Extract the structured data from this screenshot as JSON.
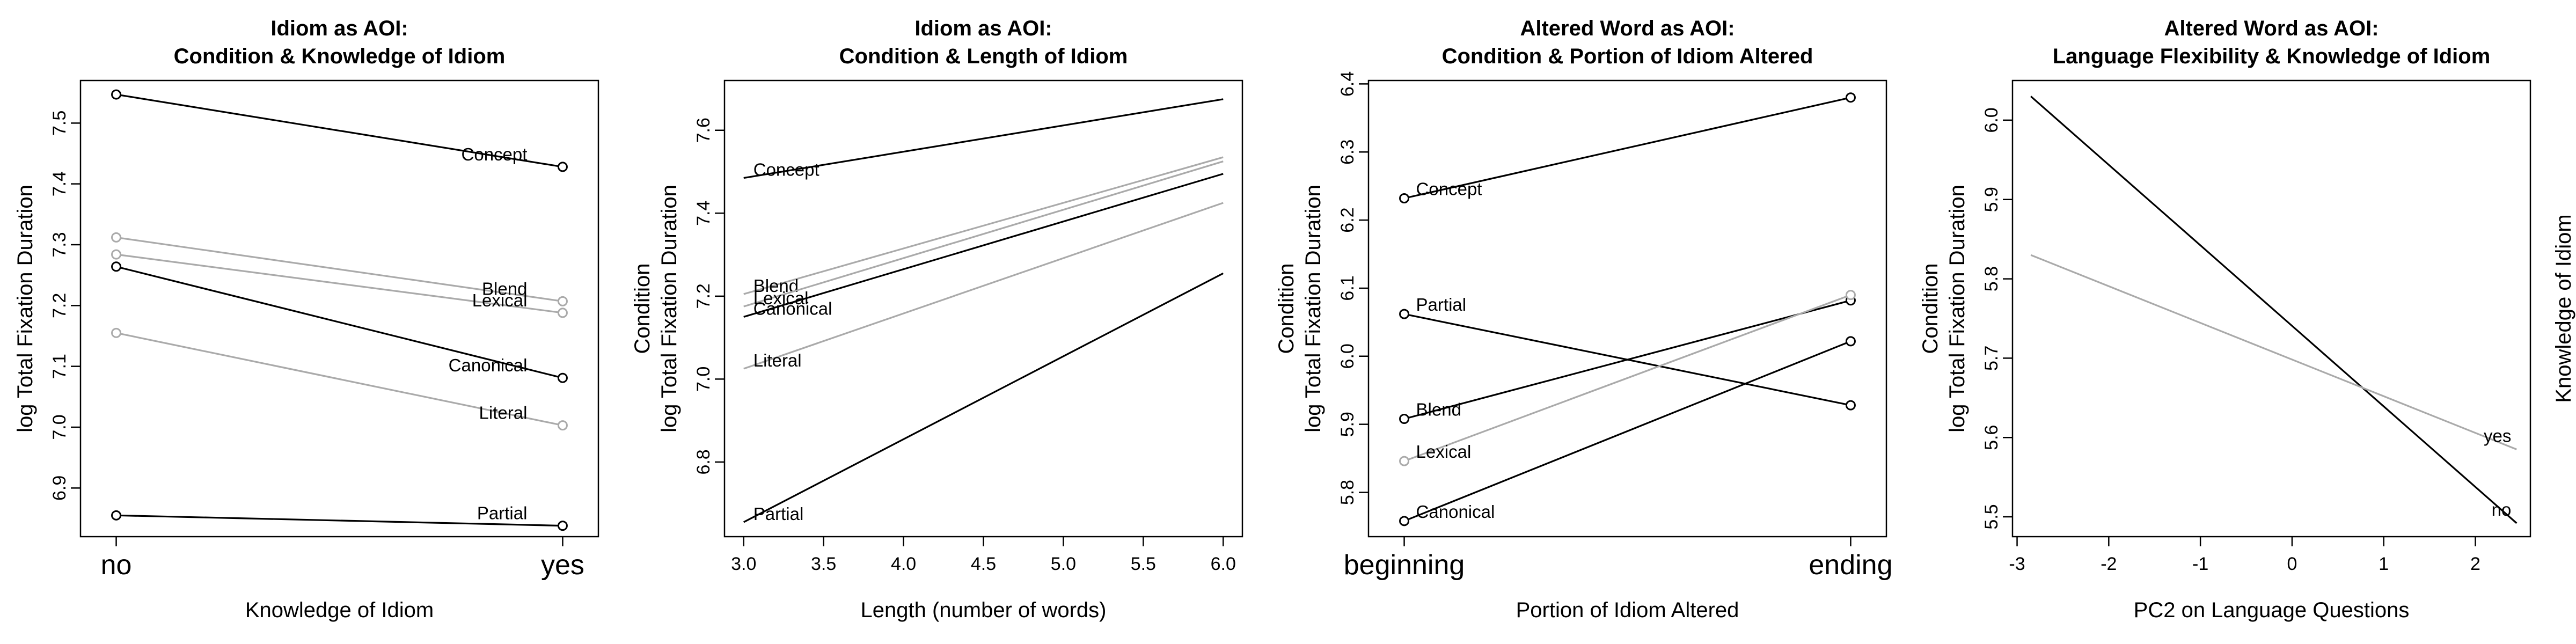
{
  "chart_data": [
    {
      "type": "line",
      "title_lines": [
        "Idiom as AOI:",
        "Condition & Knowledge of Idiom"
      ],
      "xlabel": "Knowledge of Idiom",
      "ylabel": "log Total Fixation Duration",
      "condition_label": "",
      "right_label": "",
      "x_type": "categorical",
      "categories": [
        "no",
        "yes"
      ],
      "xlim": [
        0.92,
        2.08
      ],
      "ylim": [
        6.82,
        7.57
      ],
      "y_ticks": [
        6.9,
        7.0,
        7.1,
        7.2,
        7.3,
        7.4,
        7.5
      ],
      "y_tick_labels": [
        "6.9",
        "7.0",
        "7.1",
        "7.2",
        "7.3",
        "7.4",
        "7.5"
      ],
      "series": [
        {
          "name": "Concept",
          "x": [
            1,
            2
          ],
          "y": [
            7.547,
            7.428
          ],
          "color": "#000000",
          "markers": true,
          "label_at": "end"
        },
        {
          "name": "Blend",
          "x": [
            1,
            2
          ],
          "y": [
            7.312,
            7.207
          ],
          "color": "#aaaaaa",
          "markers": true,
          "label_at": "end"
        },
        {
          "name": "Lexical",
          "x": [
            1,
            2
          ],
          "y": [
            7.284,
            7.188
          ],
          "color": "#aaaaaa",
          "markers": true,
          "label_at": "end"
        },
        {
          "name": "Canonical",
          "x": [
            1,
            2
          ],
          "y": [
            7.264,
            7.081
          ],
          "color": "#000000",
          "markers": true,
          "label_at": "end"
        },
        {
          "name": "Literal",
          "x": [
            1,
            2
          ],
          "y": [
            7.155,
            7.003
          ],
          "color": "#aaaaaa",
          "markers": true,
          "label_at": "end"
        },
        {
          "name": "Partial",
          "x": [
            1,
            2
          ],
          "y": [
            6.855,
            6.838
          ],
          "color": "#000000",
          "markers": true,
          "label_at": "end"
        }
      ]
    },
    {
      "type": "line",
      "title_lines": [
        "Idiom as AOI:",
        "Condition & Length of Idiom"
      ],
      "xlabel": "Length (number of words)",
      "ylabel": "log Total Fixation Duration",
      "condition_label": "Condition",
      "right_label": "",
      "x_type": "numeric",
      "xlim": [
        2.88,
        6.12
      ],
      "ylim": [
        6.62,
        7.72
      ],
      "x_ticks": [
        3.0,
        3.5,
        4.0,
        4.5,
        5.0,
        5.5,
        6.0
      ],
      "x_tick_labels": [
        "3.0",
        "3.5",
        "4.0",
        "4.5",
        "5.0",
        "5.5",
        "6.0"
      ],
      "y_ticks": [
        6.8,
        7.0,
        7.2,
        7.4,
        7.6
      ],
      "y_tick_labels": [
        "6.8",
        "7.0",
        "7.2",
        "7.4",
        "7.6"
      ],
      "series": [
        {
          "name": "Concept",
          "x": [
            3,
            6
          ],
          "y": [
            7.485,
            7.675
          ],
          "color": "#000000",
          "markers": false,
          "label_at": "start"
        },
        {
          "name": "Blend",
          "x": [
            3,
            6
          ],
          "y": [
            7.205,
            7.535
          ],
          "color": "#aaaaaa",
          "markers": false,
          "label_at": "start"
        },
        {
          "name": "Lexical",
          "x": [
            3,
            6
          ],
          "y": [
            7.175,
            7.525
          ],
          "color": "#aaaaaa",
          "markers": false,
          "label_at": "start"
        },
        {
          "name": "Canonical",
          "x": [
            3,
            6
          ],
          "y": [
            7.15,
            7.495
          ],
          "color": "#000000",
          "markers": false,
          "label_at": "start"
        },
        {
          "name": "Literal",
          "x": [
            3,
            6
          ],
          "y": [
            7.025,
            7.425
          ],
          "color": "#aaaaaa",
          "markers": false,
          "label_at": "start"
        },
        {
          "name": "Partial",
          "x": [
            3,
            6
          ],
          "y": [
            6.655,
            7.255
          ],
          "color": "#000000",
          "markers": false,
          "label_at": "start"
        }
      ]
    },
    {
      "type": "line",
      "title_lines": [
        "Altered Word as AOI:",
        "Condition & Portion of Idiom Altered"
      ],
      "xlabel": "Portion of Idiom Altered",
      "ylabel": "log Total Fixation Duration",
      "condition_label": "Condition",
      "right_label": "",
      "x_type": "categorical",
      "categories": [
        "beginning",
        "ending"
      ],
      "xlim": [
        0.92,
        2.08
      ],
      "ylim": [
        5.735,
        6.405
      ],
      "y_ticks": [
        5.8,
        5.9,
        6.0,
        6.1,
        6.2,
        6.3,
        6.4
      ],
      "y_tick_labels": [
        "5.8",
        "5.9",
        "6.0",
        "6.1",
        "6.2",
        "6.3",
        "6.4"
      ],
      "series": [
        {
          "name": "Concept",
          "x": [
            1,
            2
          ],
          "y": [
            6.232,
            6.38
          ],
          "color": "#000000",
          "markers": true,
          "label_at": "start"
        },
        {
          "name": "Partial",
          "x": [
            1,
            2
          ],
          "y": [
            6.062,
            5.928
          ],
          "color": "#000000",
          "markers": true,
          "label_at": "start"
        },
        {
          "name": "Blend",
          "x": [
            1,
            2
          ],
          "y": [
            5.908,
            6.082
          ],
          "color": "#000000",
          "markers": true,
          "label_at": "start"
        },
        {
          "name": "Lexical",
          "x": [
            1,
            2
          ],
          "y": [
            5.846,
            6.09
          ],
          "color": "#aaaaaa",
          "markers": true,
          "label_at": "start"
        },
        {
          "name": "Canonical",
          "x": [
            1,
            2
          ],
          "y": [
            5.758,
            6.022
          ],
          "color": "#000000",
          "markers": true,
          "label_at": "start"
        }
      ]
    },
    {
      "type": "line",
      "title_lines": [
        "Altered Word as AOI:",
        "Language Flexibility & Knowledge of Idiom"
      ],
      "xlabel": "PC2 on Language Questions",
      "ylabel": "log Total Fixation Duration",
      "condition_label": "Condition",
      "right_label": "Knowledge of Idiom",
      "x_type": "numeric",
      "xlim": [
        -3.05,
        2.6
      ],
      "ylim": [
        5.475,
        6.05
      ],
      "x_ticks": [
        -3,
        -2,
        -1,
        0,
        1,
        2
      ],
      "x_tick_labels": [
        "-3",
        "-2",
        "-1",
        "0",
        "1",
        "2"
      ],
      "y_ticks": [
        5.5,
        5.6,
        5.7,
        5.8,
        5.9,
        6.0
      ],
      "y_tick_labels": [
        "5.5",
        "5.6",
        "5.7",
        "5.8",
        "5.9",
        "6.0"
      ],
      "series": [
        {
          "name": "no",
          "x": [
            -2.85,
            2.45
          ],
          "y": [
            6.03,
            5.492
          ],
          "color": "#000000",
          "markers": false,
          "label_at": "end"
        },
        {
          "name": "yes",
          "x": [
            -2.85,
            2.45
          ],
          "y": [
            5.83,
            5.585
          ],
          "color": "#aaaaaa",
          "markers": false,
          "label_at": "end"
        }
      ]
    }
  ]
}
